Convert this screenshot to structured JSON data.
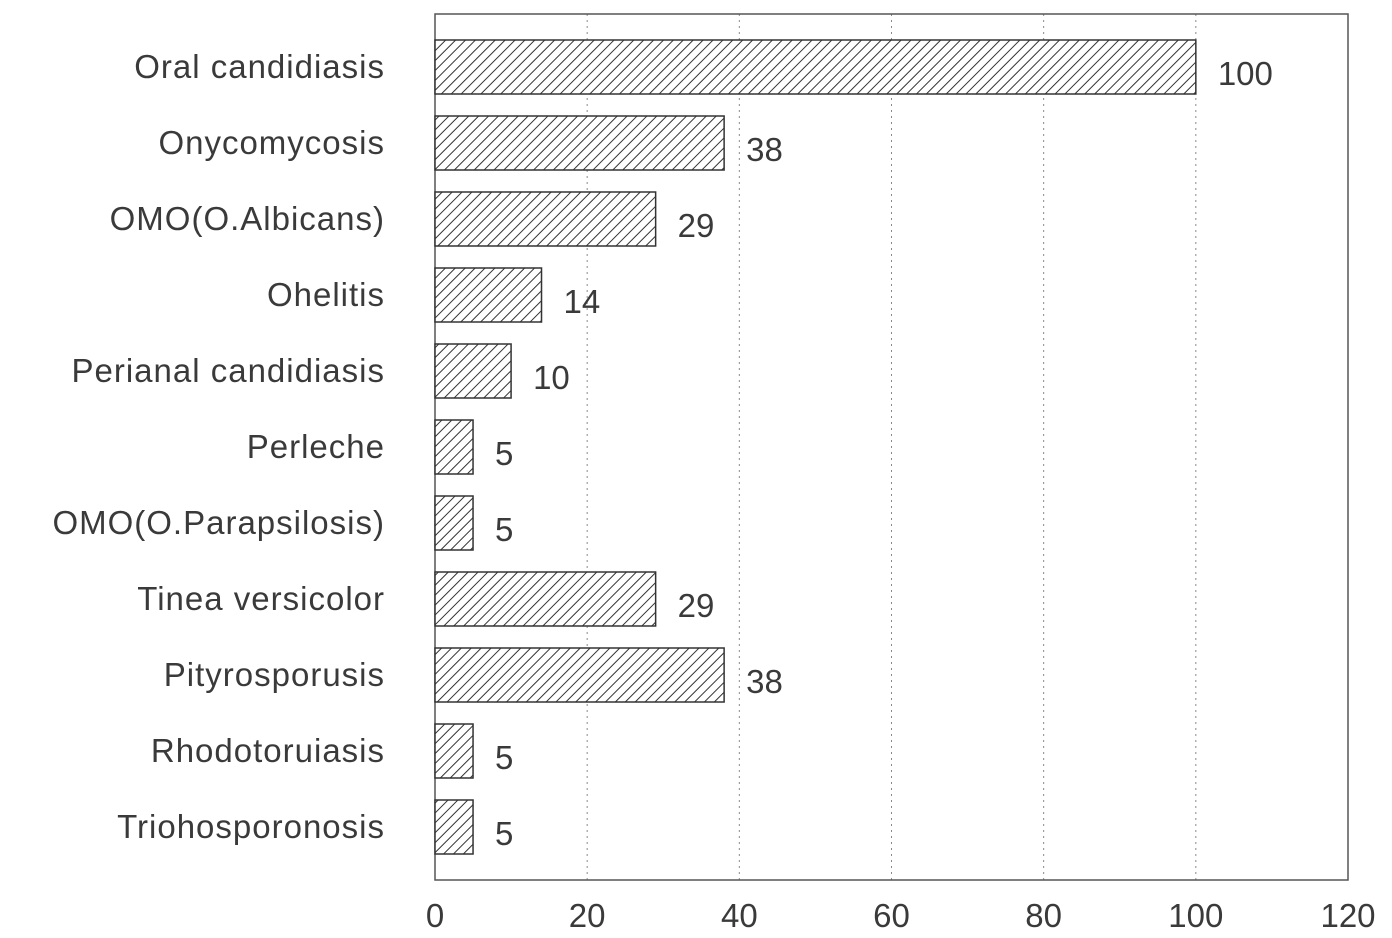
{
  "chart_data": {
    "type": "bar",
    "orientation": "horizontal",
    "categories": [
      "Oral candidiasis",
      "Onycomycosis",
      "OMO(O.Albicans)",
      "Ohelitis",
      "Perianal candidiasis",
      "Perleche",
      "OMO(O.Parapsilosis)",
      "Tinea versicolor",
      "Pityrosporusis",
      "Rhodotoruiasis",
      "Triohosporonosis"
    ],
    "values": [
      100,
      38,
      29,
      14,
      10,
      5,
      5,
      29,
      38,
      5,
      5
    ],
    "data_labels": [
      "100",
      "38",
      "29",
      "14",
      "10",
      "5",
      "5",
      "29",
      "38",
      "5",
      "5"
    ],
    "xlim": [
      0,
      120
    ],
    "xticks": [
      0,
      20,
      40,
      60,
      80,
      100,
      120
    ],
    "xtick_labels": [
      "0",
      "20",
      "40",
      "60",
      "80",
      "100",
      "120"
    ],
    "grid": "vertical-dotted",
    "bar_fill": "diagonal-hatch",
    "colors": {
      "bar_stroke": "#333333",
      "hatch": "#333333",
      "text": "#3a3a3a",
      "grid": "#8a8a8a"
    }
  }
}
